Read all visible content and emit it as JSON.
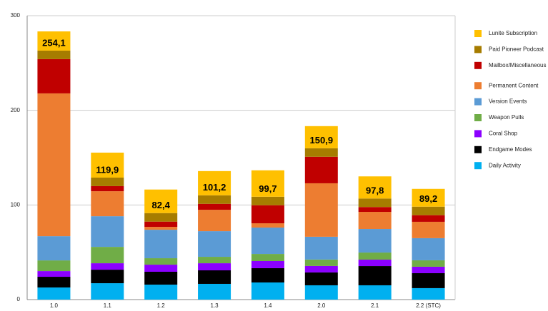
{
  "chart_data": {
    "type": "stacked_bar",
    "categories": [
      "1.0",
      "1.1",
      "1.2",
      "1.3",
      "1.4",
      "2.0",
      "2.1",
      "2.2 (STC)"
    ],
    "series": [
      {
        "name": "Daily Activity",
        "color": "#00b0f0",
        "values": [
          12.8,
          17.3,
          15.8,
          16.6,
          18.1,
          15.1,
          15.1,
          12.1
        ]
      },
      {
        "name": "Endgame Modes",
        "color": "#000000",
        "values": [
          11.3,
          14.3,
          13.6,
          14.3,
          15.1,
          13.6,
          20.3,
          15.8
        ]
      },
      {
        "name": "Coral Shop",
        "color": "#8b00ff",
        "values": [
          6.0,
          6.8,
          7.5,
          7.5,
          7.5,
          6.8,
          6.8,
          6.8
        ]
      },
      {
        "name": "Weapon Pulls",
        "color": "#70ad47",
        "values": [
          11.3,
          17.3,
          6.8,
          6.8,
          7.5,
          6.8,
          7.5,
          6.8
        ]
      },
      {
        "name": "Version Events",
        "color": "#5b9bd5",
        "values": [
          25.6,
          32.4,
          30.1,
          27.1,
          27.9,
          24.1,
          24.9,
          23.4
        ]
      },
      {
        "name": "Permanent Content",
        "color": "#ed7d31",
        "values": [
          150.9,
          26.4,
          3.0,
          22.6,
          4.5,
          56.5,
          18.1,
          17.3
        ]
      },
      {
        "name": "Mailbox/Miscellaneous",
        "color": "#c00000",
        "values": [
          36.2,
          5.4,
          5.6,
          6.3,
          19.1,
          28.0,
          5.1,
          7.0
        ]
      },
      {
        "name": "Paid Pioneer Podcast",
        "color": "#a67c00",
        "values": [
          9.0,
          9.0,
          9.0,
          9.0,
          9.0,
          9.0,
          9.0,
          9.0
        ]
      },
      {
        "name": "Lunite Subscription",
        "color": "#ffc000",
        "values": [
          20.3,
          26.4,
          24.9,
          25.6,
          27.9,
          23.4,
          23.4,
          18.8
        ]
      }
    ],
    "annotations": [
      "254,1",
      "119,9",
      "82,4",
      "101,2",
      "99,7",
      "150,9",
      "97,8",
      "89,2"
    ],
    "ylim": [
      0,
      300
    ],
    "yticks": [
      0,
      100,
      200,
      300
    ],
    "grid": true,
    "legend": "right"
  }
}
